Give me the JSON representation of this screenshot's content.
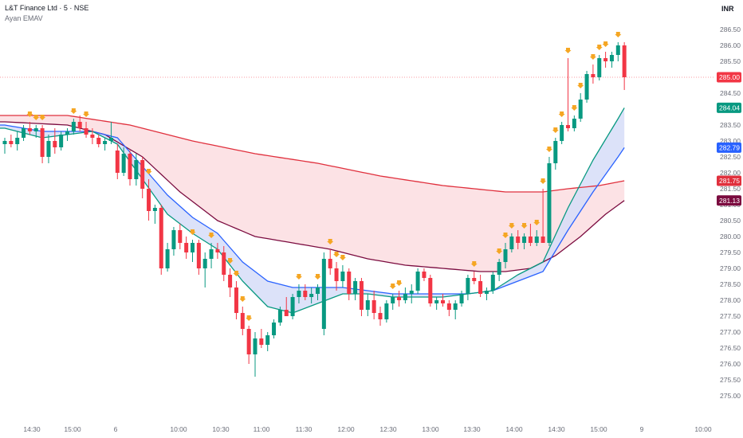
{
  "header": {
    "symbol_line": "L&T Finance Ltd · 5 · NSE",
    "indicator": "Ayan EMAV",
    "currency": "INR"
  },
  "colors": {
    "up": "#089981",
    "down": "#f23645",
    "ema_fast": "#089981",
    "ema_mid": "#2962ff",
    "ema_slow_red": "#e0303d",
    "ema_slow_maroon": "#7b0b3f",
    "fill_blue": "#d6ddf8",
    "fill_pink": "#fcdde0",
    "signal": "#f5a623"
  },
  "chart_data": {
    "type": "candlestick",
    "y_axis": {
      "ylim": [
        274.75,
        286.75
      ],
      "ticks": [
        "275.00",
        "275.50",
        "276.00",
        "276.50",
        "277.00",
        "277.50",
        "278.00",
        "278.50",
        "279.00",
        "279.50",
        "280.00",
        "280.50",
        "281.00",
        "281.50",
        "282.00",
        "282.50",
        "283.00",
        "283.50",
        "284.00",
        "284.50",
        "285.00",
        "285.50",
        "286.00",
        "286.50"
      ]
    },
    "x_axis": {
      "ticks": [
        "14:30",
        "15:00",
        "6",
        "10:00",
        "10:30",
        "11:00",
        "11:30",
        "12:00",
        "12:30",
        "13:00",
        "13:30",
        "14:00",
        "14:30",
        "15:00",
        "9",
        "10:00"
      ]
    },
    "candles": [
      {
        "o": 282.9,
        "h": 283.1,
        "l": 282.6,
        "c": 283.0
      },
      {
        "o": 283.0,
        "h": 283.2,
        "l": 282.8,
        "c": 282.9
      },
      {
        "o": 282.9,
        "h": 283.3,
        "l": 282.7,
        "c": 283.1
      },
      {
        "o": 283.1,
        "h": 283.5,
        "l": 283.0,
        "c": 283.4
      },
      {
        "o": 283.4,
        "h": 283.6,
        "l": 283.2,
        "c": 283.3
      },
      {
        "o": 283.3,
        "h": 283.5,
        "l": 283.1,
        "c": 283.4
      },
      {
        "o": 283.4,
        "h": 283.5,
        "l": 282.3,
        "c": 282.5
      },
      {
        "o": 282.5,
        "h": 283.2,
        "l": 282.3,
        "c": 283.0
      },
      {
        "o": 283.0,
        "h": 283.4,
        "l": 282.6,
        "c": 282.8
      },
      {
        "o": 282.8,
        "h": 283.3,
        "l": 282.7,
        "c": 283.2
      },
      {
        "o": 283.2,
        "h": 283.4,
        "l": 283.0,
        "c": 283.3
      },
      {
        "o": 283.3,
        "h": 283.7,
        "l": 283.2,
        "c": 283.6
      },
      {
        "o": 283.6,
        "h": 283.8,
        "l": 283.3,
        "c": 283.4
      },
      {
        "o": 283.4,
        "h": 283.6,
        "l": 283.1,
        "c": 283.2
      },
      {
        "o": 283.2,
        "h": 283.4,
        "l": 282.9,
        "c": 283.1
      },
      {
        "o": 283.1,
        "h": 283.2,
        "l": 282.8,
        "c": 282.9
      },
      {
        "o": 282.9,
        "h": 283.1,
        "l": 282.7,
        "c": 283.0
      },
      {
        "o": 283.0,
        "h": 283.6,
        "l": 282.9,
        "c": 283.1
      },
      {
        "o": 282.7,
        "h": 282.9,
        "l": 281.8,
        "c": 282.0
      },
      {
        "o": 282.0,
        "h": 282.8,
        "l": 281.9,
        "c": 282.6
      },
      {
        "o": 282.6,
        "h": 282.7,
        "l": 281.6,
        "c": 281.8
      },
      {
        "o": 281.8,
        "h": 282.6,
        "l": 281.6,
        "c": 282.4
      },
      {
        "o": 282.4,
        "h": 282.5,
        "l": 281.2,
        "c": 281.5
      },
      {
        "o": 281.5,
        "h": 281.8,
        "l": 280.5,
        "c": 280.8
      },
      {
        "o": 280.8,
        "h": 281.0,
        "l": 280.4,
        "c": 280.9
      },
      {
        "o": 280.9,
        "h": 281.0,
        "l": 278.8,
        "c": 279.0
      },
      {
        "o": 279.0,
        "h": 279.8,
        "l": 278.9,
        "c": 279.6
      },
      {
        "o": 279.6,
        "h": 280.3,
        "l": 279.4,
        "c": 280.2
      },
      {
        "o": 280.2,
        "h": 280.4,
        "l": 279.6,
        "c": 279.8
      },
      {
        "o": 279.8,
        "h": 280.0,
        "l": 279.3,
        "c": 279.5
      },
      {
        "o": 279.5,
        "h": 279.9,
        "l": 279.2,
        "c": 279.8
      },
      {
        "o": 279.8,
        "h": 279.9,
        "l": 278.8,
        "c": 279.0
      },
      {
        "o": 279.0,
        "h": 279.5,
        "l": 278.4,
        "c": 279.3
      },
      {
        "o": 279.3,
        "h": 279.8,
        "l": 279.0,
        "c": 279.6
      },
      {
        "o": 279.6,
        "h": 279.8,
        "l": 279.3,
        "c": 279.5
      },
      {
        "o": 279.5,
        "h": 279.7,
        "l": 278.6,
        "c": 278.8
      },
      {
        "o": 278.8,
        "h": 279.0,
        "l": 278.1,
        "c": 278.4
      },
      {
        "o": 278.4,
        "h": 278.6,
        "l": 277.4,
        "c": 277.6
      },
      {
        "o": 277.6,
        "h": 277.8,
        "l": 276.9,
        "c": 277.1
      },
      {
        "o": 277.1,
        "h": 277.2,
        "l": 276.0,
        "c": 276.3
      },
      {
        "o": 276.3,
        "h": 277.0,
        "l": 275.6,
        "c": 276.8
      },
      {
        "o": 276.8,
        "h": 277.1,
        "l": 276.5,
        "c": 276.6
      },
      {
        "o": 276.6,
        "h": 277.0,
        "l": 276.4,
        "c": 276.9
      },
      {
        "o": 276.9,
        "h": 277.4,
        "l": 276.8,
        "c": 277.3
      },
      {
        "o": 277.3,
        "h": 277.8,
        "l": 277.2,
        "c": 277.7
      },
      {
        "o": 277.7,
        "h": 278.1,
        "l": 277.6,
        "c": 277.5
      },
      {
        "o": 277.5,
        "h": 278.2,
        "l": 277.4,
        "c": 278.1
      },
      {
        "o": 278.1,
        "h": 278.5,
        "l": 277.9,
        "c": 278.3
      },
      {
        "o": 278.3,
        "h": 278.5,
        "l": 278.0,
        "c": 278.1
      },
      {
        "o": 278.1,
        "h": 278.4,
        "l": 277.9,
        "c": 278.2
      },
      {
        "o": 278.2,
        "h": 278.5,
        "l": 278.0,
        "c": 278.4
      },
      {
        "o": 277.1,
        "h": 279.5,
        "l": 276.9,
        "c": 279.3
      },
      {
        "o": 279.3,
        "h": 279.6,
        "l": 278.8,
        "c": 279.0
      },
      {
        "o": 279.0,
        "h": 279.2,
        "l": 278.3,
        "c": 278.6
      },
      {
        "o": 278.6,
        "h": 279.1,
        "l": 278.4,
        "c": 278.9
      },
      {
        "o": 278.9,
        "h": 279.0,
        "l": 278.0,
        "c": 278.2
      },
      {
        "o": 278.2,
        "h": 278.7,
        "l": 278.0,
        "c": 278.6
      },
      {
        "o": 278.6,
        "h": 278.7,
        "l": 277.5,
        "c": 277.7
      },
      {
        "o": 277.7,
        "h": 278.2,
        "l": 277.5,
        "c": 278.0
      },
      {
        "o": 278.0,
        "h": 278.3,
        "l": 277.4,
        "c": 277.6
      },
      {
        "o": 277.6,
        "h": 277.8,
        "l": 277.2,
        "c": 277.4
      },
      {
        "o": 277.4,
        "h": 278.0,
        "l": 277.3,
        "c": 277.9
      },
      {
        "o": 277.9,
        "h": 278.2,
        "l": 277.7,
        "c": 278.1
      },
      {
        "o": 278.1,
        "h": 278.3,
        "l": 277.8,
        "c": 278.0
      },
      {
        "o": 278.0,
        "h": 278.4,
        "l": 277.9,
        "c": 278.2
      },
      {
        "o": 278.2,
        "h": 278.5,
        "l": 277.9,
        "c": 278.3
      },
      {
        "o": 278.3,
        "h": 279.0,
        "l": 278.2,
        "c": 278.9
      },
      {
        "o": 278.9,
        "h": 279.0,
        "l": 278.6,
        "c": 278.7
      },
      {
        "o": 278.7,
        "h": 278.8,
        "l": 277.8,
        "c": 277.9
      },
      {
        "o": 277.9,
        "h": 278.1,
        "l": 277.7,
        "c": 278.0
      },
      {
        "o": 278.0,
        "h": 278.2,
        "l": 277.8,
        "c": 277.9
      },
      {
        "o": 277.9,
        "h": 278.0,
        "l": 277.5,
        "c": 277.7
      },
      {
        "o": 277.7,
        "h": 278.0,
        "l": 277.4,
        "c": 277.9
      },
      {
        "o": 277.9,
        "h": 278.3,
        "l": 277.8,
        "c": 278.2
      },
      {
        "o": 278.2,
        "h": 278.8,
        "l": 278.0,
        "c": 278.7
      },
      {
        "o": 278.7,
        "h": 278.9,
        "l": 278.5,
        "c": 278.6
      },
      {
        "o": 278.6,
        "h": 278.8,
        "l": 278.1,
        "c": 278.2
      },
      {
        "o": 278.2,
        "h": 278.4,
        "l": 278.0,
        "c": 278.3
      },
      {
        "o": 278.3,
        "h": 278.9,
        "l": 278.2,
        "c": 278.8
      },
      {
        "o": 278.8,
        "h": 279.3,
        "l": 278.6,
        "c": 279.2
      },
      {
        "o": 279.2,
        "h": 279.8,
        "l": 279.0,
        "c": 279.6
      },
      {
        "o": 279.6,
        "h": 280.1,
        "l": 279.5,
        "c": 280.0
      },
      {
        "o": 280.0,
        "h": 280.2,
        "l": 279.6,
        "c": 279.8
      },
      {
        "o": 279.8,
        "h": 280.1,
        "l": 279.6,
        "c": 280.0
      },
      {
        "o": 280.0,
        "h": 280.4,
        "l": 279.7,
        "c": 279.8
      },
      {
        "o": 279.8,
        "h": 280.2,
        "l": 279.7,
        "c": 280.0
      },
      {
        "o": 280.0,
        "h": 281.5,
        "l": 279.8,
        "c": 279.8
      },
      {
        "o": 279.8,
        "h": 282.5,
        "l": 279.7,
        "c": 282.3
      },
      {
        "o": 282.3,
        "h": 283.1,
        "l": 282.1,
        "c": 283.0
      },
      {
        "o": 283.0,
        "h": 283.6,
        "l": 282.9,
        "c": 283.5
      },
      {
        "o": 283.5,
        "h": 285.6,
        "l": 283.3,
        "c": 283.4
      },
      {
        "o": 283.4,
        "h": 283.8,
        "l": 283.3,
        "c": 283.7
      },
      {
        "o": 283.7,
        "h": 284.5,
        "l": 283.6,
        "c": 284.3
      },
      {
        "o": 284.3,
        "h": 285.2,
        "l": 284.2,
        "c": 285.1
      },
      {
        "o": 285.1,
        "h": 285.4,
        "l": 284.8,
        "c": 285.0
      },
      {
        "o": 285.0,
        "h": 285.7,
        "l": 284.9,
        "c": 285.6
      },
      {
        "o": 285.6,
        "h": 285.8,
        "l": 285.3,
        "c": 285.5
      },
      {
        "o": 285.5,
        "h": 285.8,
        "l": 285.3,
        "c": 285.7
      },
      {
        "o": 285.7,
        "h": 286.1,
        "l": 285.5,
        "c": 286.0
      },
      {
        "o": 286.0,
        "h": 286.1,
        "l": 284.6,
        "c": 285.0
      }
    ],
    "ema_fast": [
      {
        "i": 0,
        "v": 283.4
      },
      {
        "i": 6,
        "v": 283.1
      },
      {
        "i": 10,
        "v": 283.2
      },
      {
        "i": 14,
        "v": 283.3
      },
      {
        "i": 18,
        "v": 282.9
      },
      {
        "i": 22,
        "v": 281.8
      },
      {
        "i": 26,
        "v": 280.7
      },
      {
        "i": 30,
        "v": 280.1
      },
      {
        "i": 34,
        "v": 279.6
      },
      {
        "i": 38,
        "v": 278.6
      },
      {
        "i": 42,
        "v": 277.8
      },
      {
        "i": 46,
        "v": 277.6
      },
      {
        "i": 50,
        "v": 277.9
      },
      {
        "i": 54,
        "v": 278.2
      },
      {
        "i": 58,
        "v": 278.2
      },
      {
        "i": 62,
        "v": 278.1
      },
      {
        "i": 66,
        "v": 278.1
      },
      {
        "i": 70,
        "v": 278.1
      },
      {
        "i": 74,
        "v": 278.2
      },
      {
        "i": 78,
        "v": 278.3
      },
      {
        "i": 82,
        "v": 278.8
      },
      {
        "i": 86,
        "v": 279.2
      },
      {
        "i": 90,
        "v": 280.9
      },
      {
        "i": 94,
        "v": 282.4
      },
      {
        "i": 98,
        "v": 283.7
      },
      {
        "i": 99,
        "v": 284.04
      }
    ],
    "ema_mid": [
      {
        "i": 0,
        "v": 283.5
      },
      {
        "i": 6,
        "v": 283.3
      },
      {
        "i": 10,
        "v": 283.3
      },
      {
        "i": 14,
        "v": 283.3
      },
      {
        "i": 18,
        "v": 283.1
      },
      {
        "i": 22,
        "v": 282.2
      },
      {
        "i": 26,
        "v": 281.3
      },
      {
        "i": 30,
        "v": 280.6
      },
      {
        "i": 34,
        "v": 280.1
      },
      {
        "i": 38,
        "v": 279.2
      },
      {
        "i": 42,
        "v": 278.6
      },
      {
        "i": 46,
        "v": 278.4
      },
      {
        "i": 50,
        "v": 278.4
      },
      {
        "i": 54,
        "v": 278.4
      },
      {
        "i": 58,
        "v": 278.3
      },
      {
        "i": 62,
        "v": 278.2
      },
      {
        "i": 66,
        "v": 278.2
      },
      {
        "i": 70,
        "v": 278.2
      },
      {
        "i": 74,
        "v": 278.2
      },
      {
        "i": 78,
        "v": 278.3
      },
      {
        "i": 82,
        "v": 278.6
      },
      {
        "i": 86,
        "v": 278.9
      },
      {
        "i": 90,
        "v": 280.2
      },
      {
        "i": 94,
        "v": 281.4
      },
      {
        "i": 98,
        "v": 282.5
      },
      {
        "i": 99,
        "v": 282.79
      }
    ],
    "ema_slow_red": [
      {
        "i": 0,
        "v": 283.8
      },
      {
        "i": 10,
        "v": 283.8
      },
      {
        "i": 20,
        "v": 283.5
      },
      {
        "i": 30,
        "v": 283.0
      },
      {
        "i": 40,
        "v": 282.6
      },
      {
        "i": 50,
        "v": 282.3
      },
      {
        "i": 60,
        "v": 281.9
      },
      {
        "i": 70,
        "v": 281.6
      },
      {
        "i": 80,
        "v": 281.4
      },
      {
        "i": 86,
        "v": 281.4
      },
      {
        "i": 90,
        "v": 281.5
      },
      {
        "i": 95,
        "v": 281.6
      },
      {
        "i": 99,
        "v": 281.75
      }
    ],
    "ema_slow_maroon": [
      {
        "i": 0,
        "v": 283.6
      },
      {
        "i": 10,
        "v": 283.5
      },
      {
        "i": 16,
        "v": 283.2
      },
      {
        "i": 22,
        "v": 282.5
      },
      {
        "i": 28,
        "v": 281.4
      },
      {
        "i": 34,
        "v": 280.5
      },
      {
        "i": 40,
        "v": 280.0
      },
      {
        "i": 46,
        "v": 279.8
      },
      {
        "i": 52,
        "v": 279.6
      },
      {
        "i": 58,
        "v": 279.3
      },
      {
        "i": 64,
        "v": 279.1
      },
      {
        "i": 70,
        "v": 279.0
      },
      {
        "i": 76,
        "v": 278.9
      },
      {
        "i": 80,
        "v": 278.9
      },
      {
        "i": 84,
        "v": 279.0
      },
      {
        "i": 88,
        "v": 279.4
      },
      {
        "i": 92,
        "v": 280.0
      },
      {
        "i": 96,
        "v": 280.7
      },
      {
        "i": 99,
        "v": 281.13
      }
    ],
    "signals": [
      4,
      5,
      6,
      11,
      13,
      23,
      30,
      33,
      36,
      37,
      38,
      39,
      47,
      50,
      52,
      53,
      54,
      62,
      63,
      75,
      79,
      80,
      81,
      83,
      85,
      86,
      87,
      88,
      89,
      90,
      91,
      92,
      94,
      95,
      96,
      98
    ],
    "price_labels": [
      {
        "value": "285.00",
        "color": "#f23645",
        "dashed": true
      },
      {
        "value": "284.04",
        "color": "#089981"
      },
      {
        "value": "282.79",
        "color": "#2962ff"
      },
      {
        "value": "281.75",
        "color": "#e0303d"
      },
      {
        "value": "281.13",
        "color": "#7b0b3f"
      }
    ],
    "grid": false
  }
}
